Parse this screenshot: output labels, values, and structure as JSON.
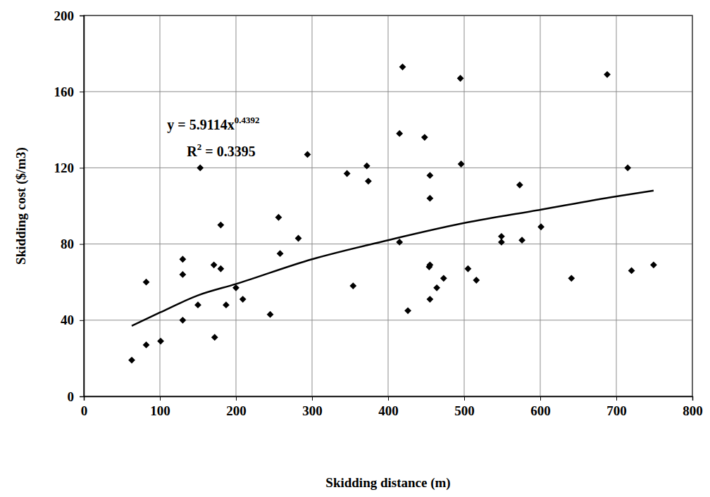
{
  "chart_data": {
    "type": "scatter",
    "x_label": "Skidding distance (m)",
    "y_label": "Skidding cost ($/m3)",
    "xlim": [
      0,
      800
    ],
    "ylim": [
      0,
      200
    ],
    "xticks": [
      0,
      100,
      200,
      300,
      400,
      500,
      600,
      700,
      800
    ],
    "yticks": [
      0,
      40,
      80,
      120,
      160,
      200
    ],
    "grid": true,
    "series": [
      {
        "type": "scatter",
        "marker": "diamond",
        "color": "#000000",
        "x": [
          63,
          82,
          82,
          101,
          130,
          130,
          130,
          150,
          153,
          171,
          172,
          180,
          180,
          187,
          200,
          209,
          245,
          256,
          258,
          282,
          294,
          346,
          354,
          372,
          374,
          415,
          415,
          419,
          426,
          448,
          454,
          455,
          455,
          455,
          455,
          464,
          473,
          495,
          496,
          505,
          516,
          549,
          549,
          573,
          576,
          601,
          641,
          688,
          715,
          720,
          749
        ],
        "values": [
          19,
          27,
          60,
          29,
          72,
          64,
          40,
          48,
          120,
          69,
          31,
          90,
          67,
          48,
          57,
          51,
          43,
          94,
          75,
          83,
          127,
          117,
          58,
          121,
          113,
          138,
          81,
          173,
          45,
          136,
          68,
          69,
          116,
          104,
          51,
          57,
          62,
          167,
          122,
          67,
          61,
          84,
          81,
          111,
          82,
          89,
          62,
          169,
          120,
          66,
          69
        ]
      },
      {
        "type": "line",
        "line_style": "solid",
        "color": "#000000",
        "x": [
          63,
          100,
          150,
          200,
          300,
          400,
          500,
          600,
          700,
          749
        ],
        "values": [
          37,
          44,
          53,
          59,
          72,
          82,
          91,
          98,
          105,
          108
        ]
      }
    ],
    "annotations": [
      {
        "parts": [
          {
            "text": "y = 5.9114x"
          },
          {
            "sup": "0.4392"
          }
        ]
      },
      {
        "parts": [
          {
            "text": "R"
          },
          {
            "sup": "2"
          },
          {
            "text": " = 0.3395"
          }
        ]
      }
    ]
  }
}
